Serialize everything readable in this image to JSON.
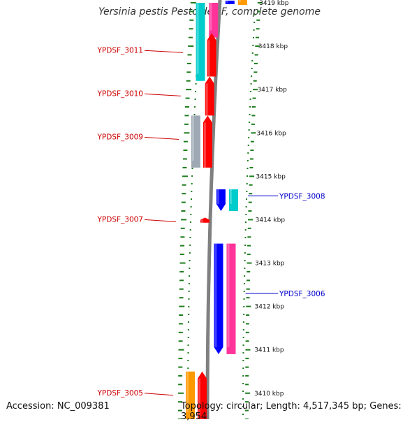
{
  "title": "Yersinia pestis Pestoides F, complete genome",
  "accession_text": "Accession: NC_009381",
  "topology_text": "Topology: circular; Length: 4,517,345 bp; Genes: 3,954",
  "colors": {
    "red": "#ff0000",
    "blue": "#0000ff",
    "cyan": "#00cccc",
    "pink": "#ff3399",
    "orange": "#ff9900",
    "gray": "#9ea8b4",
    "steel": "#5b86b8",
    "backbone": "#808080",
    "tick": "#1e7d1e",
    "label_red": "#cc0000",
    "label_blue": "#0000cc"
  },
  "scale": {
    "top_bp": 3419000,
    "bottom_bp": 3409400,
    "labels": [
      {
        "kbp": 3419,
        "text": "3419 kbp"
      },
      {
        "kbp": 3418,
        "text": "3418 kbp"
      },
      {
        "kbp": 3417,
        "text": "3417 kbp"
      },
      {
        "kbp": 3416,
        "text": "3416 kbp"
      },
      {
        "kbp": 3415,
        "text": "3415 kbp"
      },
      {
        "kbp": 3414,
        "text": "3414 kbp"
      },
      {
        "kbp": 3413,
        "text": "3413 kbp"
      },
      {
        "kbp": 3412,
        "text": "3412 kbp"
      },
      {
        "kbp": 3411,
        "text": "3411 kbp"
      },
      {
        "kbp": 3410,
        "text": "3410 kbp"
      }
    ]
  },
  "features": [
    {
      "name": "top-pink-feature",
      "strand": "reverse-inner",
      "lane": 1,
      "start_kbp": 3419.0,
      "end_kbp": 3418.2,
      "color": "pink",
      "arrow": "none"
    },
    {
      "name": "top-cyan-feature",
      "strand": "reverse-inner",
      "lane": 2,
      "start_kbp": 3419.0,
      "end_kbp": 3417.2,
      "color": "cyan",
      "arrow": "none"
    },
    {
      "name": "ypdsf-3011-gene",
      "strand": "reverse-inner",
      "lane": 1,
      "start_kbp": 3418.3,
      "end_kbp": 3417.3,
      "color": "red",
      "arrow": "up"
    },
    {
      "name": "ypdsf-3010-gene",
      "strand": "reverse-inner",
      "lane": 1,
      "start_kbp": 3417.3,
      "end_kbp": 3416.4,
      "color": "red",
      "arrow": "up"
    },
    {
      "name": "ypdsf-3009-gene",
      "strand": "reverse-inner",
      "lane": 1,
      "start_kbp": 3416.4,
      "end_kbp": 3415.2,
      "color": "red",
      "arrow": "up"
    },
    {
      "name": "ypdsf-3009-gray-feature",
      "strand": "reverse-inner",
      "lane": 2,
      "start_kbp": 3416.4,
      "end_kbp": 3415.2,
      "color": "gray",
      "arrow": "none"
    },
    {
      "name": "ypdsf-3007-gene",
      "strand": "reverse-inner",
      "lane": 1,
      "start_kbp": 3414.05,
      "end_kbp": 3413.93,
      "color": "red",
      "arrow": "up"
    },
    {
      "name": "ypdsf-3008-blue-feature",
      "strand": "forward",
      "lane": 1,
      "start_kbp": 3414.7,
      "end_kbp": 3414.2,
      "color": "blue",
      "arrow": "down"
    },
    {
      "name": "ypdsf-3008-cyan-feature",
      "strand": "forward",
      "lane": 2,
      "start_kbp": 3414.7,
      "end_kbp": 3414.2,
      "color": "cyan",
      "arrow": "none"
    },
    {
      "name": "ypdsf-3006-blue-feature",
      "strand": "forward",
      "lane": 1,
      "start_kbp": 3413.45,
      "end_kbp": 3410.9,
      "color": "blue",
      "arrow": "down"
    },
    {
      "name": "ypdsf-3006-pink-feature",
      "strand": "forward",
      "lane": 2,
      "start_kbp": 3413.45,
      "end_kbp": 3410.9,
      "color": "pink",
      "arrow": "none"
    },
    {
      "name": "ypdsf-3005-gene",
      "strand": "reverse-inner",
      "lane": 1,
      "start_kbp": 3410.5,
      "end_kbp": 3409.4,
      "color": "red",
      "arrow": "up"
    },
    {
      "name": "ypdsf-3005-orange-feature",
      "strand": "reverse-inner",
      "lane": 2,
      "start_kbp": 3410.5,
      "end_kbp": 3409.4,
      "color": "orange",
      "arrow": "none"
    },
    {
      "name": "top-blue-feature",
      "strand": "forward",
      "lane": 1,
      "start_kbp": 3419.05,
      "end_kbp": 3418.97,
      "color": "blue",
      "arrow": "none"
    },
    {
      "name": "top-orange-feature",
      "strand": "forward",
      "lane": 2,
      "start_kbp": 3419.1,
      "end_kbp": 3418.95,
      "color": "orange",
      "arrow": "none"
    }
  ],
  "labels": [
    {
      "text": "YPDSF_3011",
      "side": "left",
      "color": "label_red",
      "at_kbp": 3417.9
    },
    {
      "text": "YPDSF_3010",
      "side": "left",
      "color": "label_red",
      "at_kbp": 3416.9
    },
    {
      "text": "YPDSF_3009",
      "side": "left",
      "color": "label_red",
      "at_kbp": 3415.9
    },
    {
      "text": "YPDSF_3008",
      "side": "right",
      "color": "label_blue",
      "at_kbp": 3414.55
    },
    {
      "text": "YPDSF_3007",
      "side": "left",
      "color": "label_red",
      "at_kbp": 3414.0
    },
    {
      "text": "YPDSF_3006",
      "side": "right",
      "color": "label_blue",
      "at_kbp": 3412.3
    },
    {
      "text": "YPDSF_3005",
      "side": "left",
      "color": "label_red",
      "at_kbp": 3410.0
    }
  ]
}
